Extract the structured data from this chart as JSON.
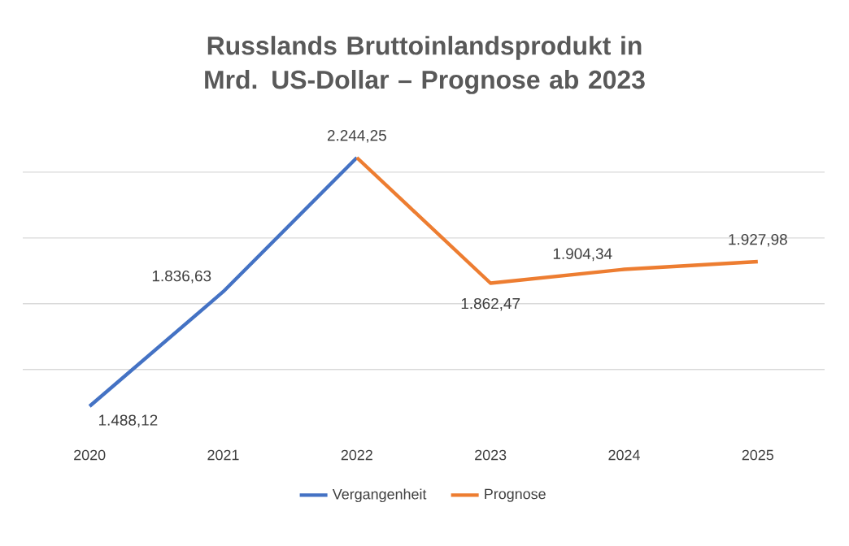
{
  "chart_data": {
    "type": "line",
    "title": "Russlands Bruttoinlandsprodukt in Mrd. US-Dollar – Prognose ab 2023",
    "categories": [
      "2020",
      "2021",
      "2022",
      "2023",
      "2024",
      "2025"
    ],
    "series": [
      {
        "name": "Vergangenheit",
        "color": "#4472c4",
        "values": [
          1488.12,
          1836.63,
          2244.25,
          null,
          null,
          null
        ],
        "value_labels": [
          "1.488,12",
          "1.836,63",
          "2.244,25",
          null,
          null,
          null
        ]
      },
      {
        "name": "Prognose",
        "color": "#ed7d31",
        "values": [
          null,
          null,
          2244.25,
          1862.47,
          1904.34,
          1927.98
        ],
        "value_labels": [
          null,
          null,
          null,
          "1.862,47",
          "1.904,34",
          "1.927,98"
        ]
      }
    ],
    "grid": "y",
    "legend": "bottom",
    "tick_labels": "x",
    "marker": "none",
    "line_style": "solid"
  }
}
